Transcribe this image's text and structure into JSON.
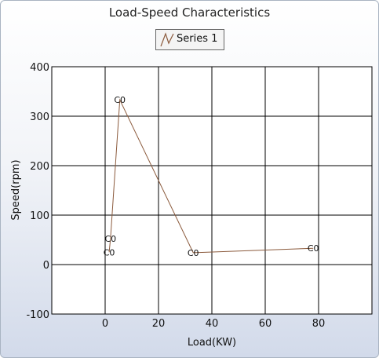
{
  "chart_data": {
    "type": "line",
    "title": "Load-Speed Characteristics",
    "xlabel": "Load(KW)",
    "ylabel": "Speed(rpm)",
    "xlim": [
      -20,
      100
    ],
    "ylim": [
      -100,
      400
    ],
    "xticks": [
      0,
      20,
      40,
      60,
      80
    ],
    "yticks": [
      -100,
      0,
      100,
      200,
      300,
      400
    ],
    "grid": true,
    "legend_position": "top-center",
    "colors": {
      "series": "#8b5a3c",
      "grid": "#000000",
      "plot_bg": "#ffffff"
    },
    "series": [
      {
        "name": "Series 1",
        "x": [
          1.5,
          2,
          5.5,
          33,
          78
        ],
        "y": [
          25,
          52,
          333,
          24,
          33
        ],
        "point_labels": [
          "C0",
          "C0",
          "C0",
          "C0",
          "C0"
        ]
      }
    ]
  }
}
